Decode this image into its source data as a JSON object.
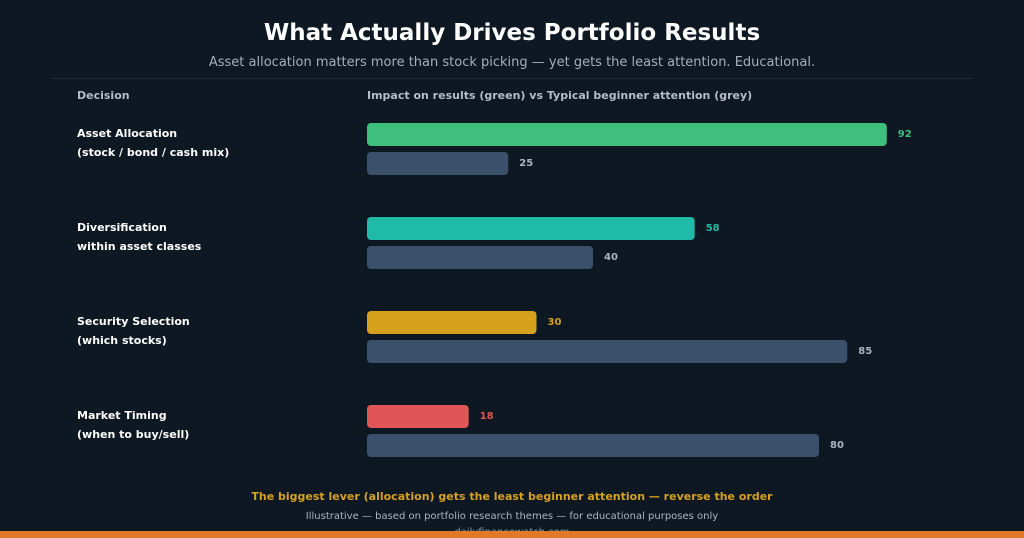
{
  "header": {
    "title": "What Actually Drives Portfolio Results",
    "subtitle": "Asset allocation matters more than stock picking — yet gets the least attention. Educational."
  },
  "columns": {
    "decision": "Decision",
    "impact": "Impact on results (green)  vs  Typical beginner attention (grey)"
  },
  "chart_data": {
    "type": "bar",
    "orientation": "horizontal",
    "xlim": [
      0,
      100
    ],
    "grid": false,
    "series_colors": {
      "attention": "#3b506b"
    },
    "categories": [
      {
        "line1": "Asset Allocation",
        "line2": "(stock / bond / cash mix)",
        "impact": 92,
        "attention": 25,
        "impact_color": "#3ebf7c"
      },
      {
        "line1": "Diversification",
        "line2": "within asset classes",
        "impact": 58,
        "attention": 40,
        "impact_color": "#1fbaa8"
      },
      {
        "line1": "Security Selection",
        "line2": "(which stocks)",
        "impact": 30,
        "attention": 85,
        "impact_color": "#d6a21e"
      },
      {
        "line1": "Market Timing",
        "line2": "(when to buy/sell)",
        "impact": 18,
        "attention": 80,
        "impact_color": "#e05555"
      }
    ]
  },
  "footer": {
    "takeaway": "The biggest lever (allocation) gets the least beginner attention — reverse the order",
    "note": "Illustrative — based on portfolio research themes — for educational purposes only",
    "site": "dailyfinancewatch.com"
  },
  "colors": {
    "background": "#0e1822",
    "accent_bar": "#e07a28"
  }
}
